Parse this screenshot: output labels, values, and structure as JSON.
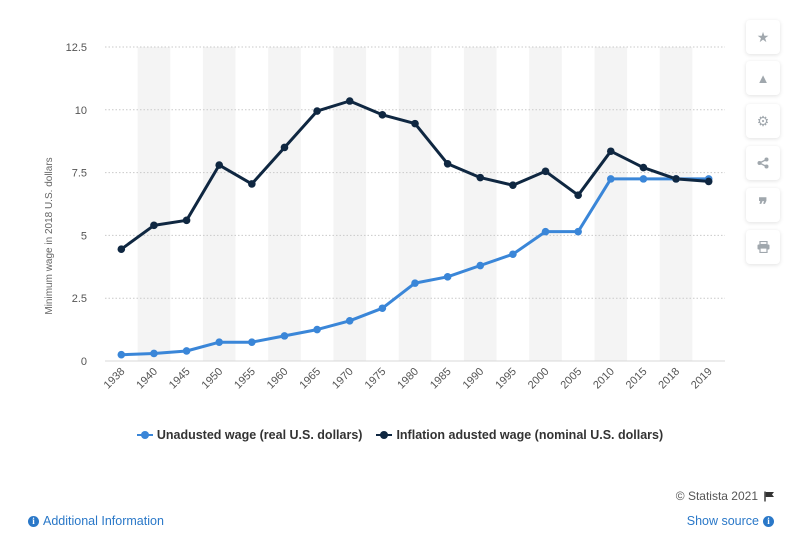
{
  "chart_data": {
    "type": "line",
    "categories": [
      "1938",
      "1940",
      "1945",
      "1950",
      "1955",
      "1960",
      "1965",
      "1970",
      "1975",
      "1980",
      "1985",
      "1990",
      "1995",
      "2000",
      "2005",
      "2010",
      "2015",
      "2018",
      "2019"
    ],
    "series": [
      {
        "name": "Unadusted wage (real U.S. dollars)",
        "color": "#3a86d8",
        "values": [
          0.25,
          0.3,
          0.4,
          0.75,
          0.75,
          1.0,
          1.25,
          1.6,
          2.1,
          3.1,
          3.35,
          3.8,
          4.25,
          5.15,
          5.15,
          7.25,
          7.25,
          7.25,
          7.25
        ]
      },
      {
        "name": "Inflation adusted wage (nominal U.S. dollars)",
        "color": "#0f2741",
        "values": [
          4.45,
          5.4,
          5.6,
          7.8,
          7.05,
          8.5,
          9.95,
          10.35,
          9.8,
          9.45,
          7.85,
          7.3,
          7.0,
          7.55,
          6.6,
          8.35,
          7.7,
          7.25,
          7.15
        ]
      }
    ],
    "ylabel": "Minimum wage in 2018 U.S. dollars",
    "ylim": [
      0,
      12.5
    ],
    "yticks": [
      0,
      2.5,
      5,
      7.5,
      10,
      12.5
    ],
    "ytick_labels": [
      "0",
      "2.5",
      "5",
      "7.5",
      "10",
      "12.5"
    ],
    "grid": true,
    "legend_position": "bottom"
  },
  "sidebar": {
    "buttons": [
      {
        "name": "star-icon",
        "glyph": "★"
      },
      {
        "name": "bell-icon",
        "glyph": "🔔"
      },
      {
        "name": "gear-icon",
        "glyph": "⚙"
      },
      {
        "name": "share-icon",
        "glyph": "<"
      },
      {
        "name": "quote-icon",
        "glyph": "❞"
      },
      {
        "name": "print-icon",
        "glyph": "⎙"
      }
    ]
  },
  "footer": {
    "credit": "© Statista 2021",
    "additional_info": "Additional Information",
    "show_source": "Show source"
  },
  "colors": {
    "accent": "#2a78c8",
    "series1": "#3a86d8",
    "series2": "#0f2741"
  }
}
